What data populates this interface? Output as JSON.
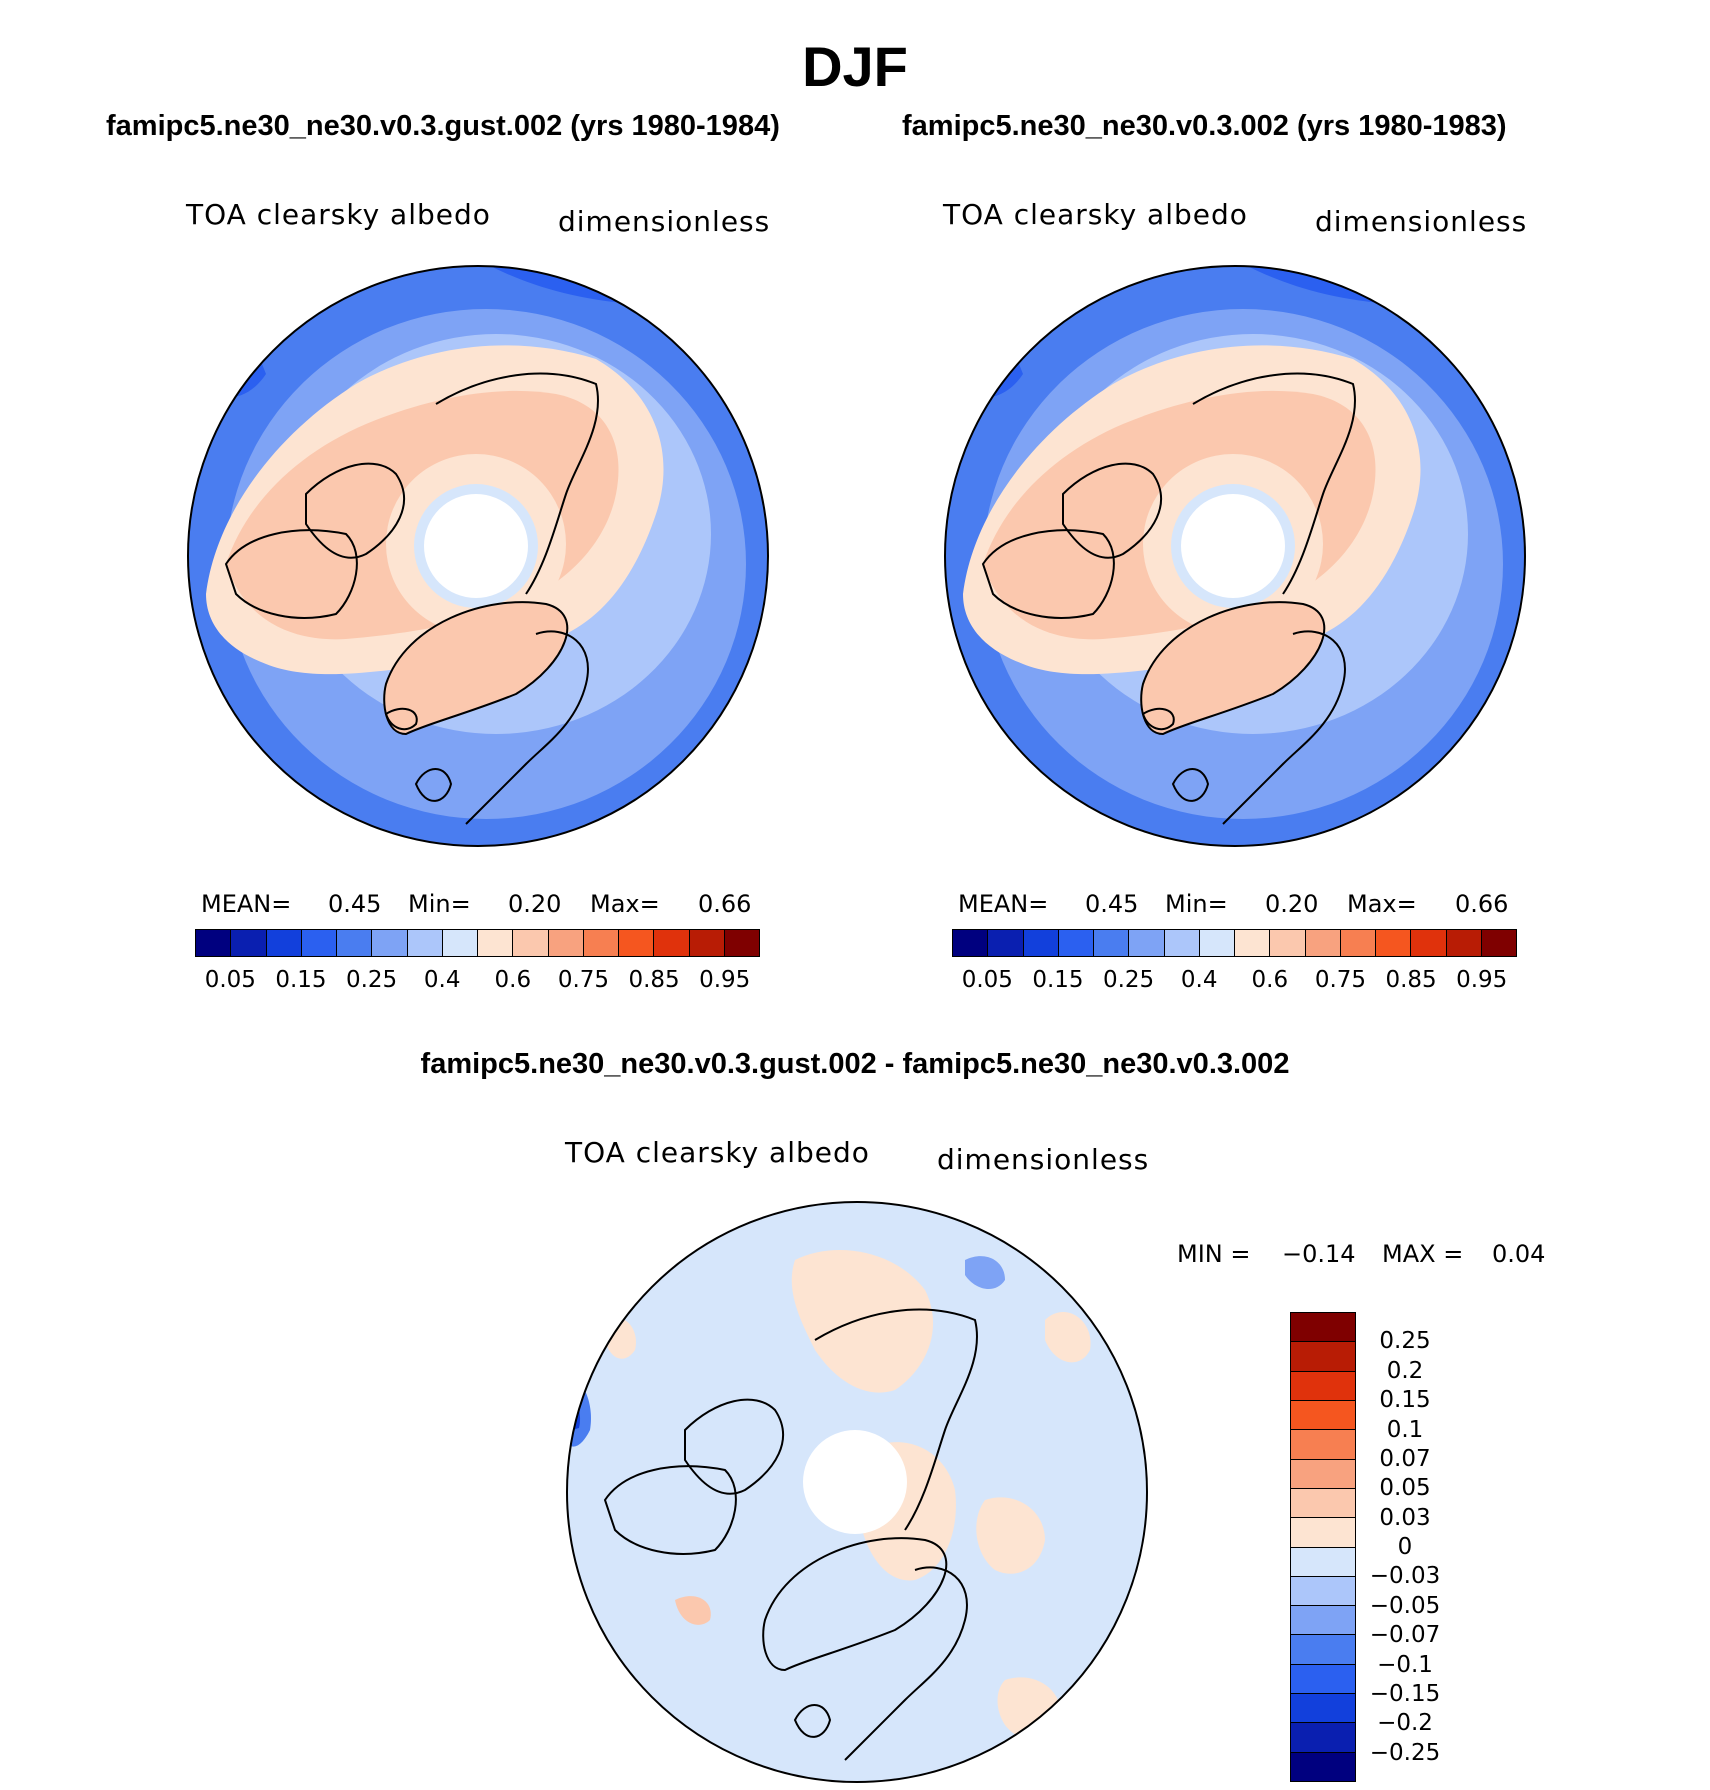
{
  "title": "DJF",
  "panels": {
    "left": {
      "case": "famipc5.ne30_ne30.v0.3.gust.002 (yrs 1980-1984)",
      "variable": "TOA clearsky albedo",
      "units": "dimensionless",
      "stats": {
        "mean_label": "MEAN=",
        "mean": "0.45",
        "min_label": "Min=",
        "min": "0.20",
        "max_label": "Max=",
        "max": "0.66"
      }
    },
    "right": {
      "case": "famipc5.ne30_ne30.v0.3.002 (yrs 1980-1983)",
      "variable": "TOA clearsky albedo",
      "units": "dimensionless",
      "stats": {
        "mean_label": "MEAN=",
        "mean": "0.45",
        "min_label": "Min=",
        "min": "0.20",
        "max_label": "Max=",
        "max": "0.66"
      }
    },
    "diff": {
      "case": "famipc5.ne30_ne30.v0.3.gust.002 - famipc5.ne30_ne30.v0.3.002",
      "variable": "TOA clearsky albedo",
      "units": "dimensionless",
      "stats": {
        "min_label": "MIN =",
        "min": "−0.14",
        "max_label": "MAX =",
        "max": "0.04"
      }
    }
  },
  "colorbars": {
    "abs": {
      "colors": [
        "#00007f",
        "#0a1fb0",
        "#1240dc",
        "#2b60f0",
        "#4a7df0",
        "#7ea3f5",
        "#acc6fa",
        "#d6e6fb",
        "#fde4d2",
        "#fbc8ae",
        "#f8a27f",
        "#f77f51",
        "#f5561f",
        "#e0320c",
        "#b81c05",
        "#7f0000"
      ],
      "labels": [
        "0.05",
        "0.15",
        "0.25",
        "0.4",
        "0.6",
        "0.75",
        "0.85",
        "0.95"
      ]
    },
    "diff": {
      "colors": [
        "#7f0000",
        "#b81c05",
        "#e0320c",
        "#f5561f",
        "#f77f51",
        "#f8a27f",
        "#fbc8ae",
        "#fde4d2",
        "#d6e6fb",
        "#acc6fa",
        "#7ea3f5",
        "#4a7df0",
        "#2b60f0",
        "#1240dc",
        "#0a1fb0",
        "#00007f"
      ],
      "labels": [
        "0.25",
        "0.2",
        "0.15",
        "0.1",
        "0.07",
        "0.05",
        "0.03",
        "0",
        "−0.03",
        "−0.05",
        "−0.07",
        "−0.1",
        "−0.15",
        "−0.2",
        "−0.25"
      ]
    }
  },
  "chart_data": [
    {
      "type": "heatmap",
      "projection": "north polar stereographic",
      "title": "famipc5.ne30_ne30.v0.3.gust.002 (yrs 1980-1984)",
      "variable": "TOA clearsky albedo",
      "units": "dimensionless",
      "mean": 0.45,
      "min": 0.2,
      "max": 0.66,
      "contour_levels": [
        0.05,
        0.1,
        0.15,
        0.2,
        0.25,
        0.3,
        0.35,
        0.4,
        0.5,
        0.6,
        0.7,
        0.75,
        0.8,
        0.85,
        0.9,
        0.95
      ]
    },
    {
      "type": "heatmap",
      "projection": "north polar stereographic",
      "title": "famipc5.ne30_ne30.v0.3.002 (yrs 1980-1983)",
      "variable": "TOA clearsky albedo",
      "units": "dimensionless",
      "mean": 0.45,
      "min": 0.2,
      "max": 0.66,
      "contour_levels": [
        0.05,
        0.1,
        0.15,
        0.2,
        0.25,
        0.3,
        0.35,
        0.4,
        0.5,
        0.6,
        0.7,
        0.75,
        0.8,
        0.85,
        0.9,
        0.95
      ]
    },
    {
      "type": "heatmap",
      "projection": "north polar stereographic",
      "title": "famipc5.ne30_ne30.v0.3.gust.002 - famipc5.ne30_ne30.v0.3.002",
      "variable": "TOA clearsky albedo",
      "units": "dimensionless",
      "min": -0.14,
      "max": 0.04,
      "contour_levels": [
        -0.25,
        -0.2,
        -0.15,
        -0.1,
        -0.07,
        -0.05,
        -0.03,
        0,
        0.03,
        0.05,
        0.07,
        0.1,
        0.15,
        0.2,
        0.25
      ]
    }
  ]
}
